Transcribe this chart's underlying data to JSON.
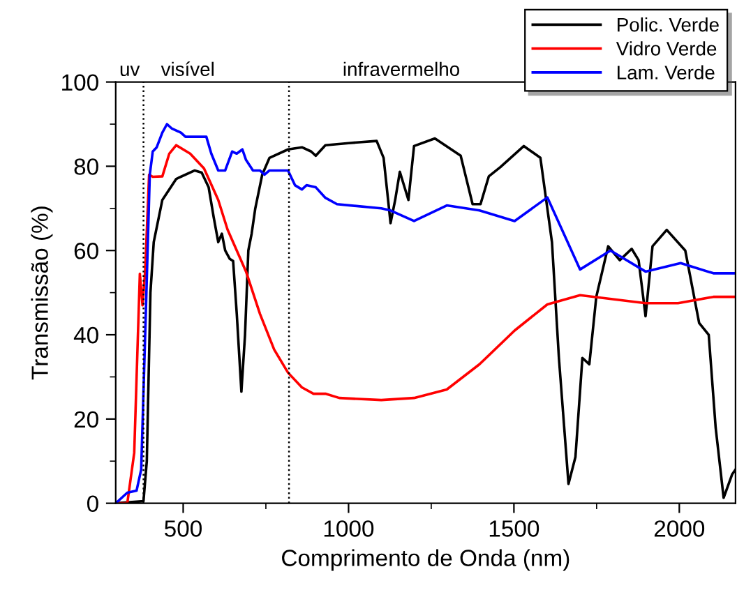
{
  "chart_data": {
    "type": "line",
    "xlabel": "Comprimento de Onda (nm)",
    "ylabel": "Transmissão (%)",
    "xlim": [
      296,
      2170
    ],
    "ylim": [
      0,
      100
    ],
    "xticks": [
      500,
      1000,
      1500,
      2000
    ],
    "yticks": [
      0,
      20,
      40,
      60,
      80,
      100
    ],
    "grid": false,
    "legend": "top right",
    "marker": "none",
    "line_style": "solid",
    "ref_lines": [
      {
        "axis": "x",
        "value": 380,
        "line_style": "dotted",
        "color": "#000000"
      },
      {
        "axis": "x",
        "value": 820,
        "line_style": "dotted",
        "color": "#000000"
      }
    ],
    "annotations": [
      "uv",
      "visível",
      "infravermelho"
    ],
    "series": [
      {
        "name": "Polic. Verde",
        "color": "#000000",
        "x": [
          296,
          380,
          390,
          401,
          411,
          437,
          479,
          535,
          556,
          577,
          592,
          606,
          617,
          627,
          641,
          651,
          662,
          676,
          687,
          697,
          707,
          718,
          739,
          761,
          817,
          859,
          887,
          901,
          930,
          1000,
          1085,
          1106,
          1127,
          1141,
          1155,
          1181,
          1198,
          1261,
          1339,
          1375,
          1399,
          1424,
          1459,
          1530,
          1580,
          1615,
          1636,
          1665,
          1686,
          1707,
          1728,
          1749,
          1785,
          1820,
          1856,
          1877,
          1898,
          1919,
          1962,
          2018,
          2060,
          2089,
          2110,
          2134,
          2160,
          2170
        ],
        "values": [
          0,
          0.5,
          10,
          50,
          62,
          72,
          77,
          79,
          78.5,
          75,
          68,
          62,
          64,
          60,
          58,
          57.5,
          45,
          26.5,
          40,
          60,
          64,
          70,
          78,
          82,
          84,
          84.5,
          83.5,
          82.5,
          85,
          85.5,
          86,
          82,
          66.5,
          72,
          78.7,
          72,
          84.8,
          86.6,
          82.5,
          71,
          71,
          77.6,
          79.8,
          84.8,
          82,
          62,
          34.5,
          4.6,
          11,
          34.5,
          33,
          49,
          61,
          57.7,
          60.4,
          57.7,
          44.4,
          61,
          64.9,
          60,
          42.8,
          40,
          17.9,
          1.3,
          6.9,
          8
        ]
      },
      {
        "name": "Vidro Verde",
        "color": "#ff0000",
        "x": [
          296,
          331,
          352,
          369,
          377,
          385,
          397,
          408,
          437,
          458,
          479,
          521,
          563,
          606,
          634,
          690,
          732,
          775,
          817,
          859,
          894,
          930,
          972,
          1099,
          1198,
          1297,
          1396,
          1502,
          1601,
          1700,
          1898,
          1996,
          2103,
          2170
        ],
        "values": [
          0,
          0,
          12,
          54.5,
          47,
          55,
          78,
          77.5,
          77.6,
          83,
          85,
          83,
          79.5,
          72,
          65,
          55,
          45,
          36.5,
          31,
          27.5,
          26,
          26,
          25,
          24.5,
          25,
          27,
          33,
          41,
          47.2,
          49.4,
          47.5,
          47.5,
          49,
          49
        ]
      },
      {
        "name": "Lam. Verde",
        "color": "#0000ff",
        "x": [
          296,
          331,
          359,
          373,
          387,
          399,
          408,
          420,
          437,
          451,
          465,
          493,
          507,
          570,
          585,
          606,
          627,
          648,
          662,
          679,
          690,
          711,
          732,
          746,
          761,
          817,
          838,
          859,
          873,
          901,
          930,
          965,
          1099,
          1127,
          1198,
          1297,
          1396,
          1502,
          1601,
          1700,
          1792,
          1898,
          2004,
          2103,
          2170
        ],
        "values": [
          0,
          2.5,
          3,
          8,
          45,
          78,
          83.5,
          84.5,
          88,
          90,
          89,
          88,
          87,
          87,
          83,
          79,
          79,
          83.5,
          83,
          84,
          81.5,
          79,
          79,
          78,
          79,
          79,
          75.5,
          74.5,
          75.5,
          75,
          72.5,
          71,
          70,
          69.5,
          67,
          70.7,
          69.5,
          67,
          72.6,
          55.5,
          60,
          55,
          57,
          54.6,
          54.6
        ]
      }
    ]
  }
}
